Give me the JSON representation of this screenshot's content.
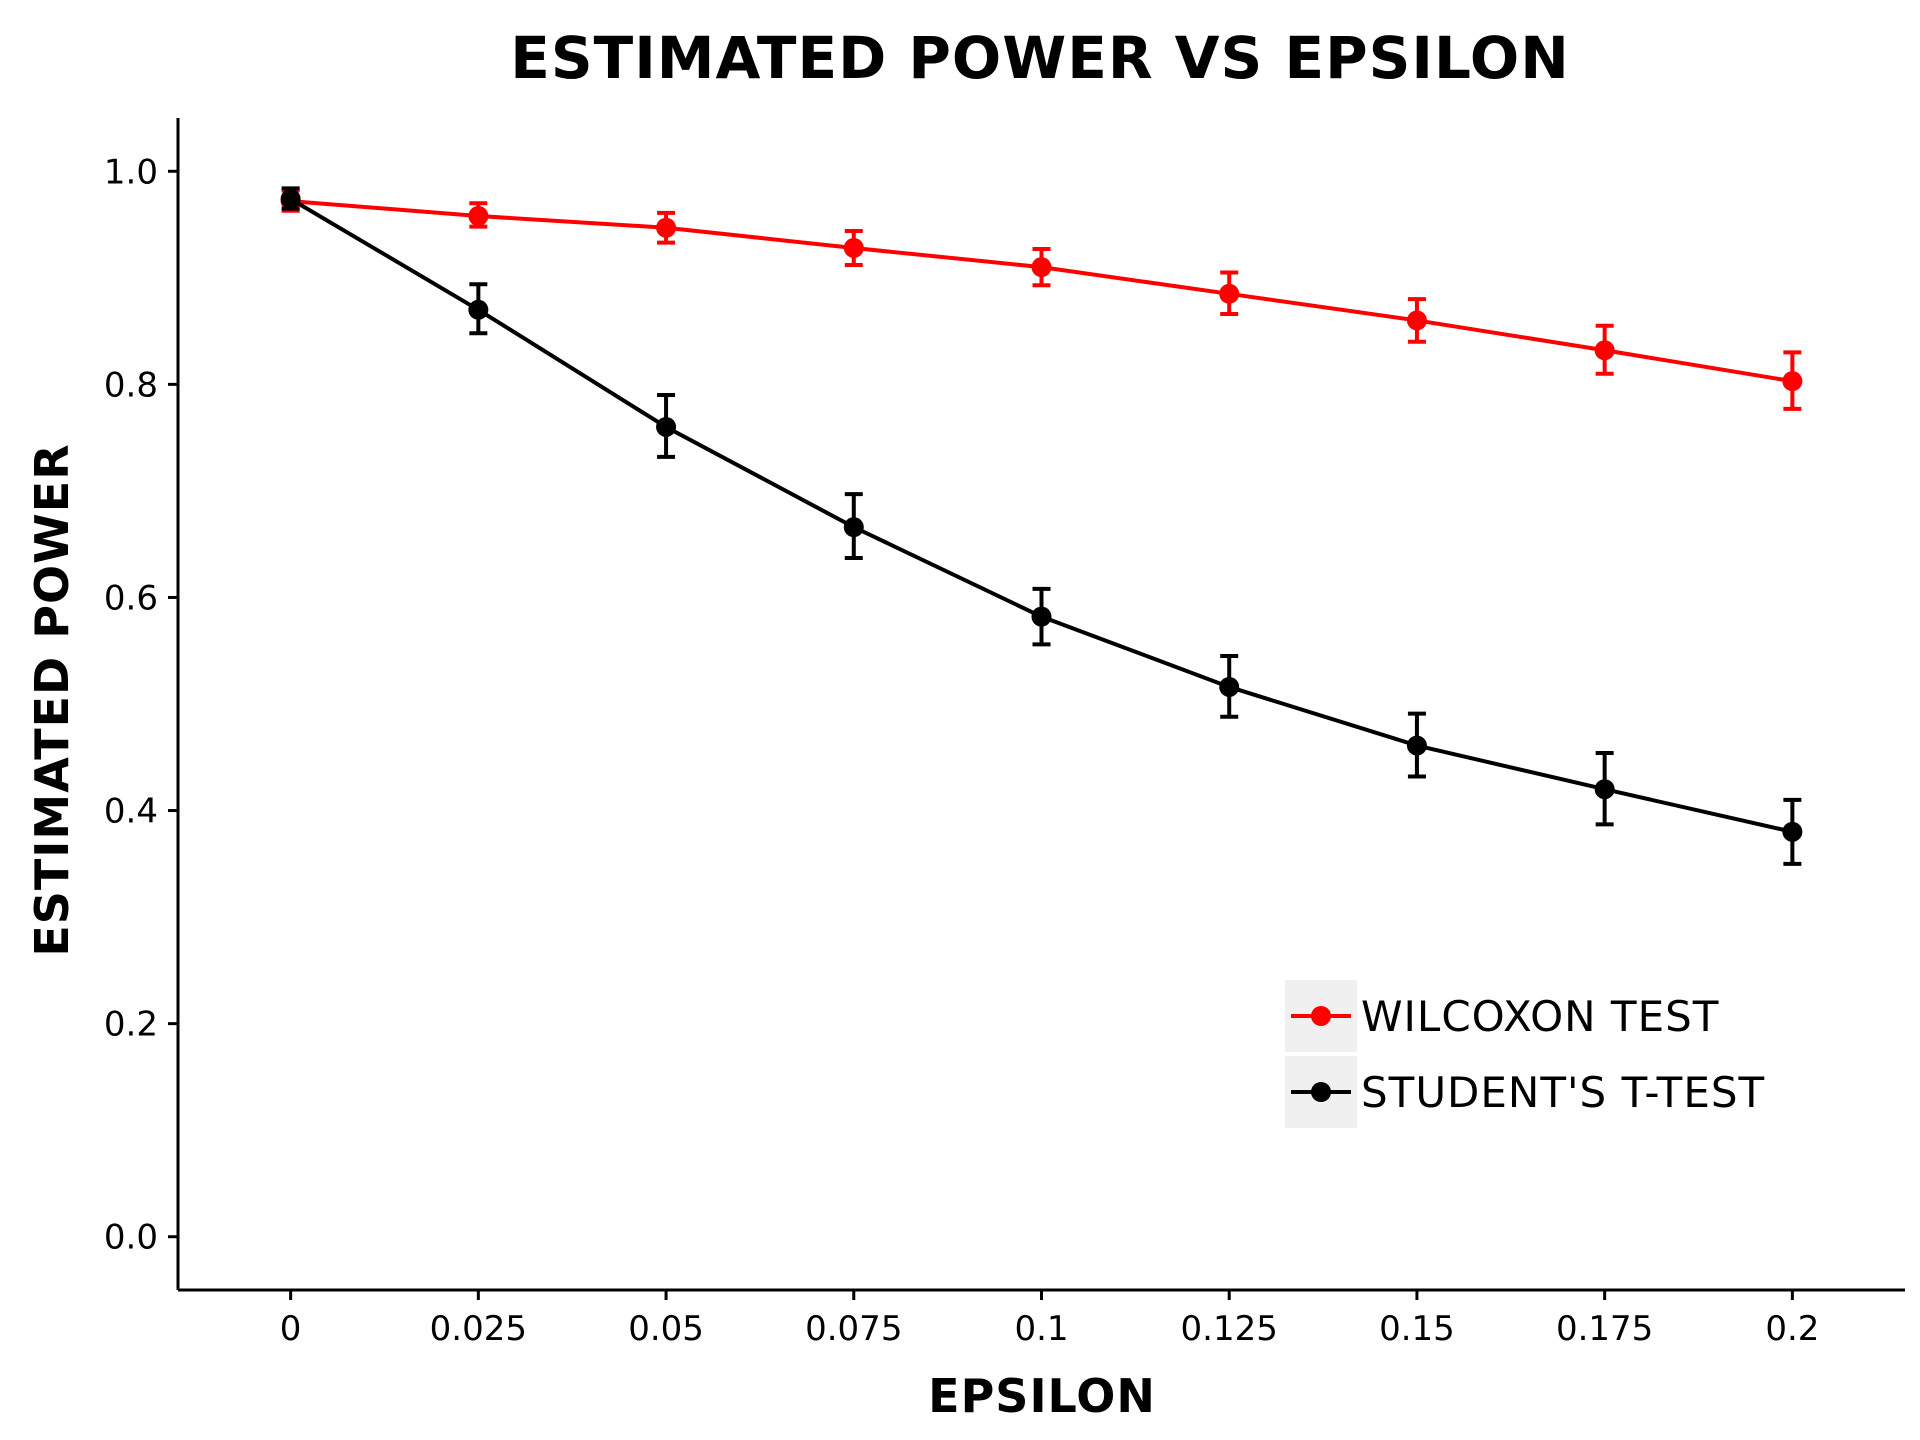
{
  "chart_data": {
    "type": "line",
    "title": "ESTIMATED POWER VS EPSILON",
    "xlabel": "EPSILON",
    "ylabel": "ESTIMATED POWER",
    "x": [
      0,
      0.025,
      0.05,
      0.075,
      0.1,
      0.125,
      0.15,
      0.175,
      0.2
    ],
    "x_tick_labels": [
      "0",
      "0.025",
      "0.05",
      "0.075",
      "0.1",
      "0.125",
      "0.15",
      "0.175",
      "0.2"
    ],
    "y_ticks": [
      0.0,
      0.2,
      0.4,
      0.6,
      0.8,
      1.0
    ],
    "y_tick_labels": [
      "0.0",
      "0.2",
      "0.4",
      "0.6",
      "0.8",
      "1.0"
    ],
    "xlim": [
      -0.015,
      0.215
    ],
    "ylim": [
      -0.05,
      1.05
    ],
    "grid": false,
    "legend_position": "bottom-right",
    "series": [
      {
        "name": "WILCOXON TEST",
        "color": "#ff0000",
        "values": [
          0.972,
          0.958,
          0.947,
          0.928,
          0.91,
          0.885,
          0.86,
          0.832,
          0.803
        ],
        "err_low": [
          0.963,
          0.948,
          0.933,
          0.912,
          0.893,
          0.866,
          0.84,
          0.81,
          0.777
        ],
        "err_high": [
          0.982,
          0.97,
          0.961,
          0.944,
          0.927,
          0.905,
          0.88,
          0.855,
          0.83
        ]
      },
      {
        "name": "STUDENT'S T-TEST",
        "color": "#000000",
        "values": [
          0.974,
          0.87,
          0.76,
          0.666,
          0.582,
          0.516,
          0.461,
          0.42,
          0.38
        ],
        "err_low": [
          0.965,
          0.848,
          0.732,
          0.637,
          0.556,
          0.488,
          0.432,
          0.387,
          0.35
        ],
        "err_high": [
          0.984,
          0.894,
          0.79,
          0.697,
          0.608,
          0.545,
          0.491,
          0.454,
          0.41
        ]
      }
    ]
  }
}
